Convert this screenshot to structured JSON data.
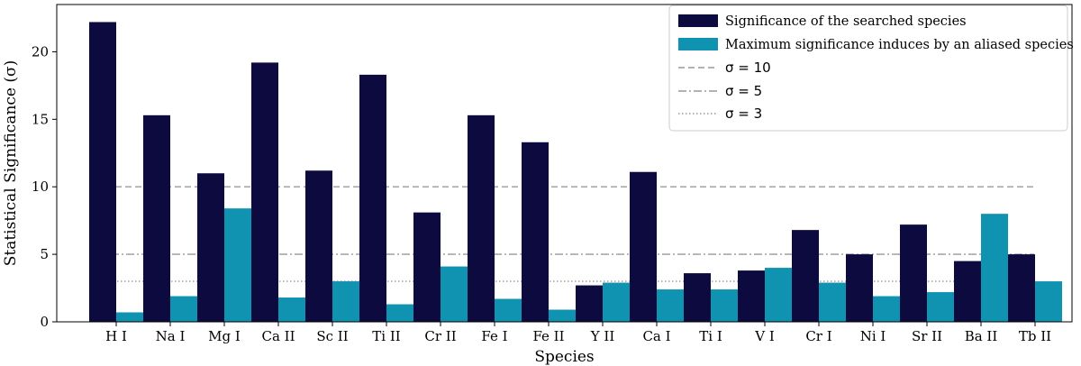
{
  "chart_data": {
    "type": "bar",
    "xlabel": "Species",
    "ylabel": "Statistical Significance (σ)",
    "ylim": [
      0,
      23.5
    ],
    "yticks": [
      0,
      5,
      10,
      15,
      20
    ],
    "categories": [
      "H I",
      "Na I",
      "Mg I",
      "Ca II",
      "Sc II",
      "Ti II",
      "Cr II",
      "Fe I",
      "Fe II",
      "Y II",
      "Ca I",
      "Ti I",
      "V I",
      "Cr I",
      "Ni I",
      "Sr II",
      "Ba II",
      "Tb II"
    ],
    "series": [
      {
        "name": "Significance of the searched species",
        "color": "#0c0a3e",
        "values": [
          22.2,
          15.3,
          11.0,
          19.2,
          11.2,
          18.3,
          8.1,
          15.3,
          13.3,
          2.7,
          11.1,
          3.6,
          3.8,
          6.8,
          5.0,
          7.2,
          4.5,
          5.0
        ]
      },
      {
        "name": "Maximum significance induces by an aliased species",
        "color": "#0f93b0",
        "values": [
          0.7,
          1.9,
          8.4,
          1.8,
          3.0,
          1.3,
          4.1,
          1.7,
          0.9,
          2.9,
          2.4,
          2.4,
          4.0,
          2.9,
          1.9,
          2.2,
          8.0,
          3.0
        ]
      }
    ],
    "reference_lines": [
      {
        "label": "σ = 10",
        "value": 10,
        "style": "dashed",
        "color": "#999999"
      },
      {
        "label": "σ = 5",
        "value": 5,
        "style": "dashdot",
        "color": "#999999"
      },
      {
        "label": "σ = 3",
        "value": 3,
        "style": "dotted",
        "color": "#999999"
      }
    ],
    "legend_position": "top-right",
    "grid": false
  }
}
